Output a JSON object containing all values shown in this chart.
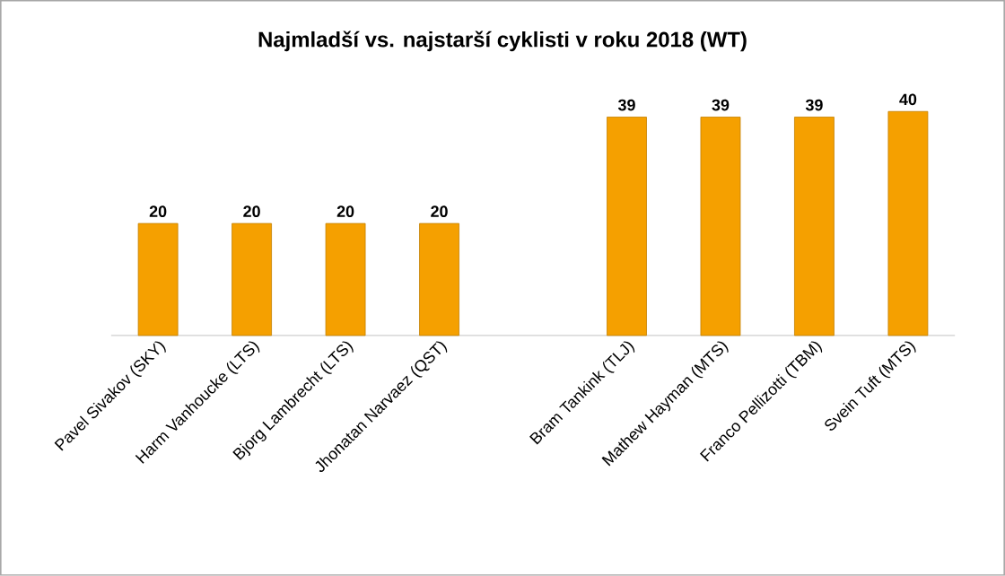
{
  "chart_data": {
    "type": "bar",
    "title": "Najmladší vs. najstarší cyklisti v roku 2018 (WT)",
    "categories": [
      "Pavel Sivakov (SKY)",
      "Harm Vanhoucke (LTS)",
      "Bjorg Lambrecht (LTS)",
      "Jhonatan Narvaez (QST)",
      null,
      "Bram Tankink (TLJ)",
      "Mathew Hayman (MTS)",
      "Franco Pellizotti (TBM)",
      "Svein Tuft (MTS)"
    ],
    "values": [
      20,
      20,
      20,
      20,
      null,
      39,
      39,
      39,
      40
    ],
    "color": "#f5a000",
    "data_labels": true
  }
}
